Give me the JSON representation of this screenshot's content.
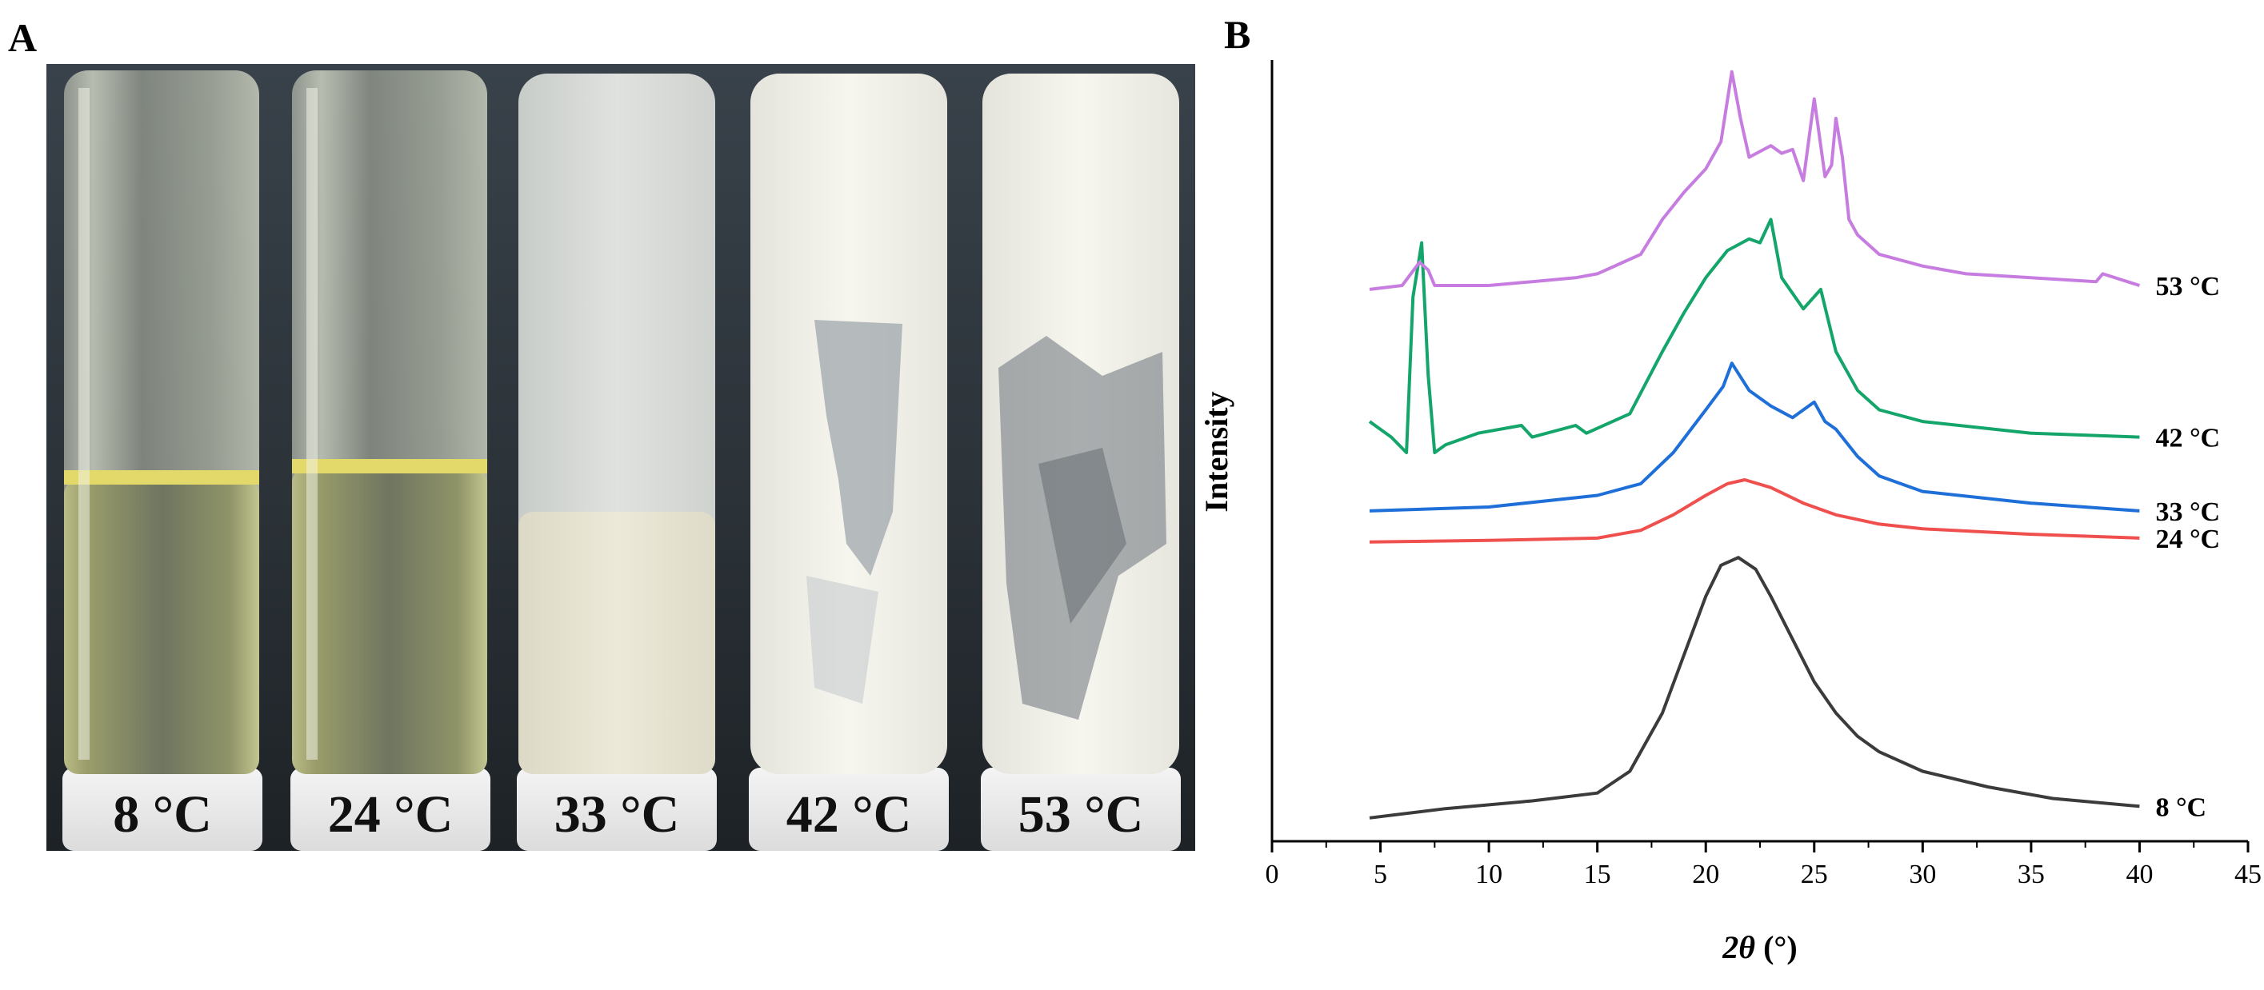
{
  "panel_a": {
    "letter": "A",
    "vials": [
      {
        "label": "8 °C",
        "state": "clear-liquid"
      },
      {
        "label": "24 °C",
        "state": "clear-liquid"
      },
      {
        "label": "33 °C",
        "state": "turbid"
      },
      {
        "label": "42 °C",
        "state": "white-solid"
      },
      {
        "label": "53 °C",
        "state": "white-solid"
      }
    ]
  },
  "panel_b": {
    "letter": "B"
  },
  "chart_data": {
    "type": "line",
    "title": "",
    "xlabel_symbol": "2θ",
    "xlabel_unit": " (°)",
    "ylabel": "Intensity",
    "xlim": [
      0,
      45
    ],
    "ylim": [
      0,
      100
    ],
    "xticks": [
      "0",
      "5",
      "10",
      "15",
      "20",
      "25",
      "30",
      "35",
      "40",
      "45"
    ],
    "series": [
      {
        "name": "8 °C",
        "color": "#3b3b3b",
        "x": [
          4.5,
          8,
          12,
          15,
          16.5,
          18,
          19,
          20,
          20.7,
          21.5,
          22.3,
          23,
          24,
          25,
          26,
          27,
          28,
          30,
          33,
          36,
          40
        ],
        "y": [
          3.0,
          4.2,
          5.2,
          6.2,
          9.0,
          16.5,
          24.0,
          31.5,
          35.5,
          36.5,
          35.0,
          31.5,
          26.0,
          20.5,
          16.5,
          13.5,
          11.5,
          9.0,
          7.0,
          5.5,
          4.5
        ]
      },
      {
        "name": "24 °C",
        "color": "#f0504d",
        "x": [
          4.5,
          10,
          15,
          17,
          18.5,
          20,
          21,
          21.8,
          23,
          24.5,
          26,
          28,
          30,
          35,
          40
        ],
        "y": [
          38.5,
          38.7,
          39.0,
          40.0,
          42.0,
          44.5,
          46.0,
          46.5,
          45.5,
          43.5,
          42.0,
          40.8,
          40.2,
          39.5,
          39.0
        ]
      },
      {
        "name": "33 °C",
        "color": "#1f6fd8",
        "x": [
          4.5,
          10,
          15,
          17,
          18.5,
          20,
          20.8,
          21.2,
          22,
          23,
          24,
          24.5,
          25,
          25.5,
          26,
          27,
          28,
          30,
          35,
          40
        ],
        "y": [
          42.5,
          43.0,
          44.5,
          46.0,
          50.0,
          55.5,
          58.5,
          61.5,
          58.0,
          56.0,
          54.5,
          55.5,
          56.5,
          54.0,
          53.0,
          49.5,
          47.0,
          45.0,
          43.5,
          42.5
        ]
      },
      {
        "name": "42 °C",
        "color": "#13a56a",
        "x": [
          4.5,
          5.5,
          6.2,
          6.5,
          6.9,
          7.2,
          7.5,
          8,
          9.5,
          11.5,
          12,
          14,
          14.5,
          16.5,
          18,
          19,
          20,
          21,
          22,
          22.5,
          23,
          23.5,
          24.5,
          25.3,
          26,
          27,
          28,
          30,
          35,
          40
        ],
        "y": [
          54.0,
          52.0,
          50.0,
          70.0,
          77.0,
          60.0,
          50.0,
          51.0,
          52.5,
          53.5,
          52.0,
          53.5,
          52.5,
          55.0,
          63.0,
          68.0,
          72.5,
          76.0,
          77.5,
          77.0,
          80.0,
          72.5,
          68.5,
          71.0,
          63.0,
          58.0,
          55.5,
          54.0,
          52.5,
          52.0
        ]
      },
      {
        "name": "53 °C",
        "color": "#c77de0",
        "x": [
          4.5,
          6,
          6.8,
          7.2,
          7.5,
          8,
          10,
          12,
          14,
          15,
          17,
          18,
          19,
          20,
          20.7,
          21.2,
          21.6,
          22,
          23,
          23.5,
          24,
          24.5,
          25,
          25.5,
          25.8,
          26,
          26.3,
          26.6,
          27,
          28,
          30,
          32,
          35,
          38,
          38.3,
          40
        ],
        "y": [
          71.0,
          71.5,
          74.5,
          73.5,
          71.5,
          71.5,
          71.5,
          72.0,
          72.5,
          73.0,
          75.5,
          80.0,
          83.5,
          86.5,
          90.0,
          99.0,
          93.0,
          88.0,
          89.5,
          88.5,
          89.0,
          85.0,
          95.5,
          85.5,
          87.0,
          93.0,
          88.0,
          80.0,
          78.0,
          75.5,
          74.0,
          73.0,
          72.5,
          72.0,
          73.0,
          71.5
        ]
      }
    ]
  }
}
